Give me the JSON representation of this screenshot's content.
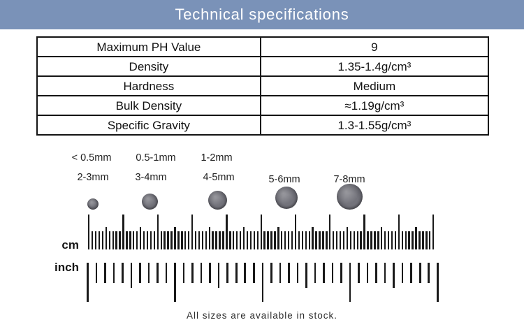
{
  "header": {
    "title": "Technical specifications",
    "bg_color": "#7a92b8",
    "text_color": "#ffffff"
  },
  "spec_table": {
    "rows": [
      {
        "property": "Maximum PH Value",
        "value": "9"
      },
      {
        "property": "Density",
        "value": "1.35-1.4g/cm³"
      },
      {
        "property": "Hardness",
        "value": "Medium"
      },
      {
        "property": "Bulk Density",
        "value": "≈1.19g/cm³"
      },
      {
        "property": "Specific Gravity",
        "value": "1.3-1.55g/cm³"
      }
    ]
  },
  "sizes": {
    "row1_labels": [
      "< 0.5mm",
      "0.5-1mm",
      "1-2mm"
    ],
    "row2_labels": [
      "2-3mm",
      "3-4mm",
      "4-5mm",
      "5-6mm",
      "7-8mm"
    ]
  },
  "ruler": {
    "cm_label": "cm",
    "inch_label": "inch",
    "cm_total": 10,
    "inch_total": 4
  },
  "footer": {
    "note": "All sizes are available in stock."
  }
}
